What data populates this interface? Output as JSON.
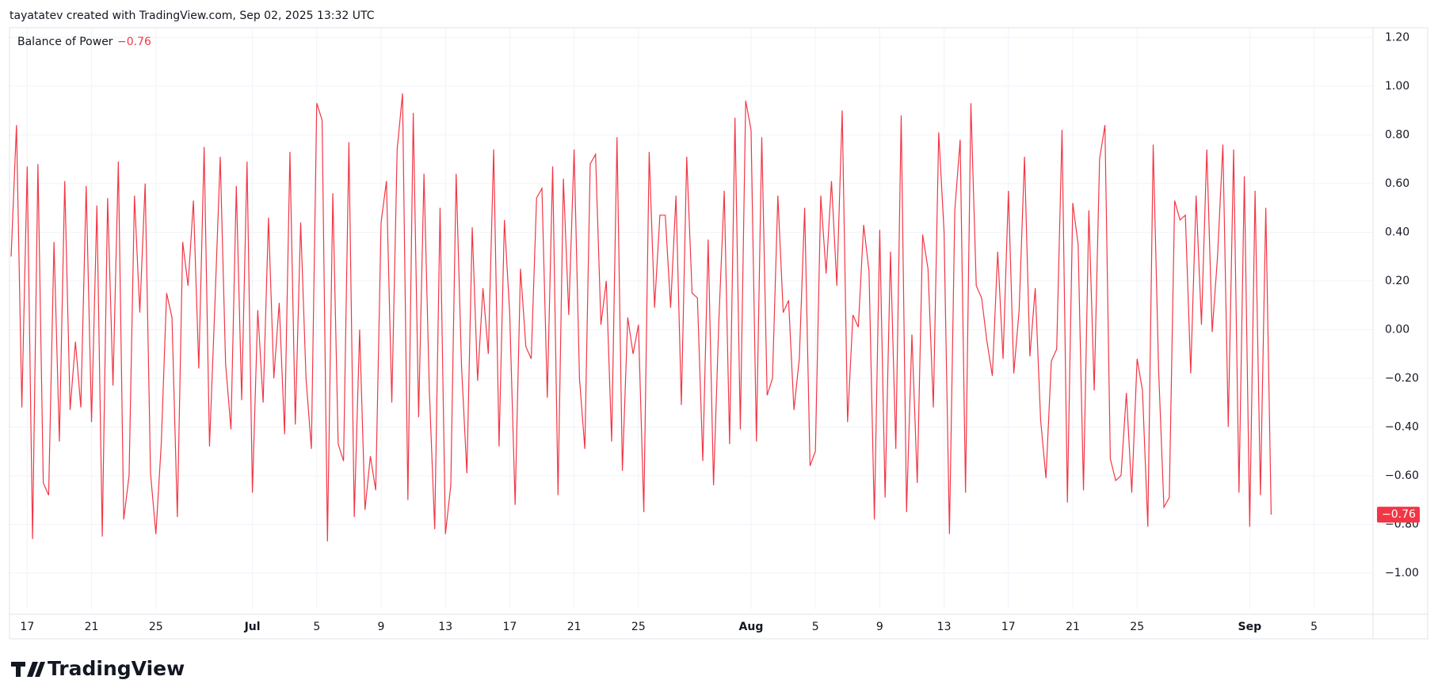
{
  "header": {
    "text": "tayatatev created with TradingView.com, Sep 02, 2025 13:32 UTC"
  },
  "footer": {
    "logo": "TradingView"
  },
  "chart_data": {
    "type": "line",
    "series": [
      {
        "name": "Balance of Power",
        "color": "#f23645",
        "last_label": "−0.76",
        "values": [
          0.3,
          0.84,
          -0.32,
          0.67,
          -0.86,
          0.68,
          -0.63,
          -0.68,
          0.36,
          -0.46,
          0.61,
          -0.33,
          -0.05,
          -0.32,
          0.59,
          -0.38,
          0.51,
          -0.85,
          0.54,
          -0.23,
          0.69,
          -0.78,
          -0.6,
          0.55,
          0.07,
          0.6,
          -0.59,
          -0.84,
          -0.47,
          0.15,
          0.05,
          -0.77,
          0.36,
          0.18,
          0.53,
          -0.16,
          0.75,
          -0.48,
          0.1,
          0.71,
          -0.14,
          -0.41,
          0.59,
          -0.29,
          0.69,
          -0.67,
          0.08,
          -0.3,
          0.46,
          -0.2,
          0.11,
          -0.43,
          0.73,
          -0.39,
          0.44,
          -0.2,
          -0.49,
          0.93,
          0.86,
          -0.87,
          0.56,
          -0.47,
          -0.54,
          0.77,
          -0.77,
          0.0,
          -0.74,
          -0.52,
          -0.66,
          0.44,
          0.61,
          -0.3,
          0.74,
          0.97,
          -0.7,
          0.89,
          -0.36,
          0.64,
          -0.25,
          -0.82,
          0.5,
          -0.84,
          -0.64,
          0.64,
          -0.15,
          -0.59,
          0.42,
          -0.21,
          0.17,
          -0.1,
          0.74,
          -0.48,
          0.45,
          0.06,
          -0.72,
          0.25,
          -0.07,
          -0.12,
          0.54,
          0.58,
          -0.28,
          0.67,
          -0.68,
          0.62,
          0.06,
          0.74,
          -0.2,
          -0.49,
          0.68,
          0.72,
          0.02,
          0.2,
          -0.46,
          0.79,
          -0.58,
          0.05,
          -0.1,
          0.02,
          -0.75,
          0.73,
          0.09,
          0.47,
          0.47,
          0.09,
          0.55,
          -0.31,
          0.71,
          0.15,
          0.13,
          -0.54,
          0.37,
          -0.64,
          0.04,
          0.57,
          -0.47,
          0.87,
          -0.41,
          0.94,
          0.82,
          -0.46,
          0.79,
          -0.27,
          -0.2,
          0.55,
          0.07,
          0.12,
          -0.33,
          -0.12,
          0.5,
          -0.56,
          -0.5,
          0.55,
          0.23,
          0.61,
          0.18,
          0.9,
          -0.38,
          0.06,
          0.01,
          0.43,
          0.24,
          -0.78,
          0.41,
          -0.69,
          0.32,
          -0.49,
          0.88,
          -0.75,
          -0.02,
          -0.63,
          0.39,
          0.25,
          -0.32,
          0.81,
          0.4,
          -0.84,
          0.49,
          0.78,
          -0.67,
          0.93,
          0.18,
          0.13,
          -0.05,
          -0.19,
          0.32,
          -0.12,
          0.57,
          -0.18,
          0.08,
          0.71,
          -0.11,
          0.17,
          -0.37,
          -0.61,
          -0.13,
          -0.08,
          0.82,
          -0.71,
          0.52,
          0.35,
          -0.66,
          0.49,
          -0.25,
          0.7,
          0.84,
          -0.53,
          -0.62,
          -0.6,
          -0.26,
          -0.67,
          -0.12,
          -0.25,
          -0.81,
          0.76,
          -0.16,
          -0.73,
          -0.69,
          0.53,
          0.45,
          0.47,
          -0.18,
          0.55,
          0.02,
          0.74,
          -0.01,
          0.3,
          0.76,
          -0.4,
          0.74,
          -0.67,
          0.63,
          -0.81,
          0.57,
          -0.68,
          0.5,
          -0.76
        ]
      }
    ],
    "xlim": [
      -0.3,
      254
    ],
    "xticks": [
      {
        "value": 3,
        "label": "17"
      },
      {
        "value": 15,
        "label": "21"
      },
      {
        "value": 27,
        "label": "25"
      },
      {
        "value": 45,
        "label": "Jul"
      },
      {
        "value": 57,
        "label": "5"
      },
      {
        "value": 69,
        "label": "9"
      },
      {
        "value": 81,
        "label": "13"
      },
      {
        "value": 93,
        "label": "17"
      },
      {
        "value": 105,
        "label": "21"
      },
      {
        "value": 117,
        "label": "25"
      },
      {
        "value": 138,
        "label": "Aug"
      },
      {
        "value": 150,
        "label": "5"
      },
      {
        "value": 162,
        "label": "9"
      },
      {
        "value": 174,
        "label": "13"
      },
      {
        "value": 186,
        "label": "17"
      },
      {
        "value": 198,
        "label": "21"
      },
      {
        "value": 210,
        "label": "25"
      },
      {
        "value": 231,
        "label": "Sep"
      },
      {
        "value": 243,
        "label": "5"
      }
    ],
    "ylim": [
      -1.15,
      1.24
    ],
    "yticks": [
      {
        "value": -1,
        "label": "−1.00"
      },
      {
        "value": -0.8,
        "label": "−0.80"
      },
      {
        "value": -0.6,
        "label": "−0.60"
      },
      {
        "value": -0.4,
        "label": "−0.40"
      },
      {
        "value": -0.2,
        "label": "−0.20"
      },
      {
        "value": 0,
        "label": "0.00"
      },
      {
        "value": 0.2,
        "label": "0.20"
      },
      {
        "value": 0.4,
        "label": "0.40"
      },
      {
        "value": 0.6,
        "label": "0.60"
      },
      {
        "value": 0.8,
        "label": "0.80"
      },
      {
        "value": 1,
        "label": "1.00"
      },
      {
        "value": 1.2,
        "label": "1.20"
      }
    ],
    "grid": true
  }
}
